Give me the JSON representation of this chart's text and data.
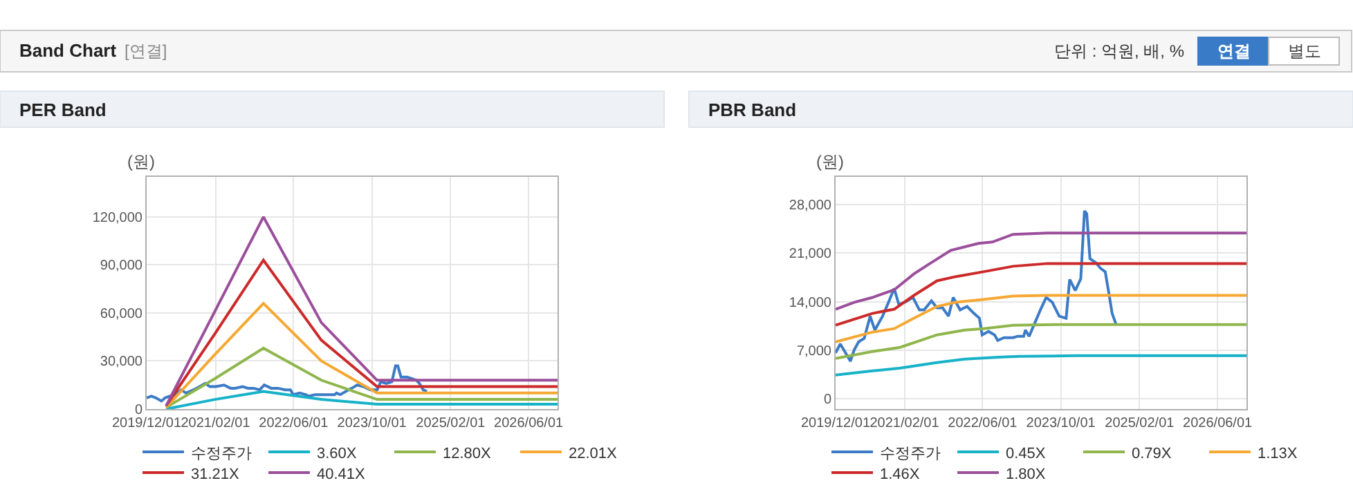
{
  "chart_data": [
    {
      "type": "other",
      "title": "Band Chart",
      "subtitle": "[연결]",
      "annotations": [
        "단위 : 억원, 배, %",
        "연결",
        "별도"
      ]
    },
    {
      "type": "line",
      "title": "PER Band",
      "ylabel": "(원)",
      "grid": true,
      "legend": "bottom",
      "marker": "none",
      "line_style": "solid",
      "xlim": [
        "2019-12-01",
        "2026-11-28"
      ],
      "ylim": [
        0,
        145000
      ],
      "xticks": [
        {
          "value": "2019-12-01",
          "label": "2019/12/01"
        },
        {
          "value": "2021-02-01",
          "label": "2021/02/01"
        },
        {
          "value": "2022-06-01",
          "label": "2022/06/01"
        },
        {
          "value": "2023-10-01",
          "label": "2023/10/01"
        },
        {
          "value": "2025-02-01",
          "label": "2025/02/01"
        },
        {
          "value": "2026-06-01",
          "label": "2026/06/01"
        }
      ],
      "yticks": [
        0,
        {
          "value": 30000,
          "label": "30,000"
        },
        {
          "value": 60000,
          "label": "60,000"
        },
        {
          "value": 90000,
          "label": "90,000"
        },
        {
          "value": 120000,
          "label": "120,000"
        }
      ],
      "series": [
        {
          "name": "수정주가",
          "color": "#3c7bc6",
          "x": [
            "2019-12-01",
            "2019-12-30",
            "2020-01-27",
            "2020-03-02",
            "2020-03-25",
            "2020-04-22",
            "2020-05-27",
            "2020-07-03",
            "2020-08-01",
            "2020-09-18",
            "2020-10-25",
            "2020-11-29",
            "2020-12-28",
            "2021-02-03",
            "2021-03-26",
            "2021-05-05",
            "2021-06-03",
            "2021-07-19",
            "2021-08-22",
            "2021-09-26",
            "2021-11-02",
            "2021-12-01",
            "2022-01-13",
            "2022-02-25",
            "2022-04-09",
            "2022-05-13",
            "2022-05-30",
            "2022-07-09",
            "2022-08-15",
            "2022-09-04",
            "2022-10-12",
            "2022-12-08",
            "2023-01-06",
            "2023-02-12",
            "2023-02-23",
            "2023-03-18",
            "2023-04-22",
            "2023-05-29",
            "2023-07-02",
            "2023-08-09",
            "2023-09-21",
            "2023-11-03",
            "2023-11-25",
            "2023-12-30",
            "2024-02-02",
            "2024-02-25",
            "2024-03-10",
            "2024-03-30",
            "2024-05-07",
            "2024-06-04",
            "2024-07-03",
            "2024-07-23",
            "2024-08-15",
            "2024-09-07"
          ],
          "values": [
            7000,
            8000,
            7000,
            5000,
            7000,
            8000,
            9000,
            12000,
            10000,
            12000,
            14000,
            16000,
            14000,
            14000,
            15000,
            13000,
            13000,
            14000,
            13000,
            13000,
            12000,
            15000,
            13000,
            13000,
            12000,
            12000,
            9000,
            10000,
            9000,
            8000,
            9000,
            9000,
            9000,
            9000,
            10000,
            9000,
            11000,
            13000,
            15000,
            14000,
            12000,
            12000,
            17000,
            16000,
            17000,
            27000,
            27000,
            20000,
            20000,
            19000,
            18000,
            16000,
            12000,
            11000
          ]
        },
        {
          "name": "3.60X",
          "color": "#17b2c8",
          "x": [
            "2020-03-31",
            "2021-01-28",
            "2021-11-26",
            "2022-11-21",
            "2023-11-02",
            "2026-11-28"
          ],
          "values": [
            0,
            6000,
            11000,
            6000,
            3000,
            3000
          ]
        },
        {
          "name": "12.80X",
          "color": "#8fb64c",
          "x": [
            "2020-03-31",
            "2021-01-28",
            "2021-11-26",
            "2022-11-21",
            "2023-11-02",
            "2026-11-28"
          ],
          "values": [
            1000,
            19000,
            38000,
            18000,
            6000,
            6000
          ]
        },
        {
          "name": "22.01X",
          "color": "#f5a833",
          "x": [
            "2020-03-31",
            "2021-01-28",
            "2021-11-26",
            "2022-11-21",
            "2023-11-02",
            "2026-11-28"
          ],
          "values": [
            1000,
            34000,
            66000,
            30000,
            10000,
            10000
          ]
        },
        {
          "name": "31.21X",
          "color": "#cc2a2a",
          "x": [
            "2020-03-31",
            "2021-01-28",
            "2021-11-26",
            "2022-11-21",
            "2023-11-02",
            "2026-11-28"
          ],
          "values": [
            2000,
            47000,
            93000,
            43000,
            14000,
            14000
          ]
        },
        {
          "name": "40.41X",
          "color": "#9b4f9b",
          "x": [
            "2020-03-31",
            "2021-01-28",
            "2021-11-26",
            "2022-11-21",
            "2023-11-02",
            "2026-11-28"
          ],
          "values": [
            2000,
            61000,
            120000,
            54000,
            18000,
            18000
          ]
        }
      ]
    },
    {
      "type": "line",
      "title": "PBR Band",
      "ylabel": "(원)",
      "grid": true,
      "legend": "bottom",
      "marker": "none",
      "line_style": "solid",
      "xlim": [
        "2019-12-01",
        "2026-11-28"
      ],
      "ylim": [
        -1500,
        32000
      ],
      "xticks": [
        {
          "value": "2019-12-01",
          "label": "2019/12/01"
        },
        {
          "value": "2021-02-01",
          "label": "2021/02/01"
        },
        {
          "value": "2022-06-01",
          "label": "2022/06/01"
        },
        {
          "value": "2023-10-01",
          "label": "2023/10/01"
        },
        {
          "value": "2025-02-01",
          "label": "2025/02/01"
        },
        {
          "value": "2026-06-01",
          "label": "2026/06/01"
        }
      ],
      "yticks": [
        0,
        {
          "value": 7000,
          "label": "7,000"
        },
        {
          "value": 14000,
          "label": "14,000"
        },
        {
          "value": 21000,
          "label": "21,000"
        },
        {
          "value": 28000,
          "label": "28,000"
        }
      ],
      "series": [
        {
          "name": "수정주가",
          "color": "#3c7bc6",
          "x": [
            "2019-12-01",
            "2019-12-30",
            "2020-01-27",
            "2020-03-02",
            "2020-03-25",
            "2020-04-22",
            "2020-05-27",
            "2020-07-03",
            "2020-08-01",
            "2020-09-18",
            "2020-10-25",
            "2020-11-29",
            "2020-12-28",
            "2021-02-03",
            "2021-03-26",
            "2021-05-05",
            "2021-06-03",
            "2021-07-19",
            "2021-08-22",
            "2021-09-26",
            "2021-11-02",
            "2021-12-01",
            "2022-01-13",
            "2022-02-25",
            "2022-04-09",
            "2022-05-13",
            "2022-05-30",
            "2022-07-09",
            "2022-08-15",
            "2022-09-04",
            "2022-10-12",
            "2022-12-08",
            "2023-01-06",
            "2023-02-12",
            "2023-02-23",
            "2023-03-18",
            "2023-04-22",
            "2023-05-29",
            "2023-07-02",
            "2023-08-09",
            "2023-09-21",
            "2023-11-03",
            "2023-11-25",
            "2023-12-30",
            "2024-02-02",
            "2024-02-25",
            "2024-03-10",
            "2024-03-30",
            "2024-05-07",
            "2024-06-04",
            "2024-07-03",
            "2024-07-23",
            "2024-08-15",
            "2024-09-07"
          ],
          "values": [
            6600,
            7900,
            6800,
            5400,
            7000,
            8200,
            8700,
            11900,
            9900,
            11900,
            13900,
            15900,
            13600,
            13900,
            14600,
            12800,
            12800,
            14100,
            13100,
            13100,
            11900,
            14600,
            12800,
            13300,
            12300,
            11600,
            9200,
            9700,
            9200,
            8400,
            8800,
            8800,
            9000,
            9000,
            9900,
            9000,
            10900,
            12900,
            14600,
            13900,
            11900,
            11600,
            17200,
            15600,
            17300,
            27100,
            26700,
            20200,
            19600,
            18800,
            18300,
            15600,
            12300,
            10800
          ]
        },
        {
          "name": "0.45X",
          "color": "#17b2c8",
          "x": [
            "2019-12-01",
            "2020-07-17",
            "2021-01-05",
            "2021-08-22",
            "2022-02-10",
            "2022-09-27",
            "2023-01-20",
            "2023-12-30",
            "2026-11-28"
          ],
          "values": [
            3400,
            4000,
            4400,
            5200,
            5700,
            6000,
            6100,
            6200,
            6200
          ]
        },
        {
          "name": "0.79X",
          "color": "#8fb64c",
          "x": [
            "2019-12-01",
            "2020-07-17",
            "2021-01-05",
            "2021-08-22",
            "2022-02-10",
            "2022-06-05",
            "2022-12-08",
            "2023-10-05",
            "2026-11-28"
          ],
          "values": [
            5800,
            6800,
            7400,
            9200,
            9900,
            10100,
            10600,
            10700,
            10700
          ]
        },
        {
          "name": "1.13X",
          "color": "#f5a833",
          "x": [
            "2019-12-01",
            "2020-07-17",
            "2020-11-29",
            "2021-04-01",
            "2021-08-22",
            "2021-12-15",
            "2022-06-05",
            "2022-12-08",
            "2023-07-11",
            "2026-11-28"
          ],
          "values": [
            8200,
            9600,
            10100,
            11600,
            13300,
            13900,
            14300,
            14800,
            14900,
            14900
          ]
        },
        {
          "name": "1.46X",
          "color": "#cc2a2a",
          "x": [
            "2019-12-01",
            "2020-07-17",
            "2020-11-29",
            "2021-04-01",
            "2021-08-22",
            "2021-12-15",
            "2022-06-05",
            "2022-12-08",
            "2023-07-11",
            "2026-11-28"
          ],
          "values": [
            10600,
            12300,
            12900,
            14900,
            17000,
            17600,
            18300,
            19100,
            19500,
            19500
          ]
        },
        {
          "name": "1.80X",
          "color": "#9b4f9b",
          "x": [
            "2019-12-01",
            "2020-03-25",
            "2020-07-17",
            "2020-11-29",
            "2021-04-01",
            "2021-06-26",
            "2021-11-16",
            "2022-05-07",
            "2022-08-01",
            "2022-12-08",
            "2023-07-11",
            "2026-11-28"
          ],
          "values": [
            12900,
            13900,
            14600,
            15700,
            18000,
            19300,
            21400,
            22400,
            22600,
            23700,
            23900,
            23900
          ]
        }
      ]
    }
  ]
}
